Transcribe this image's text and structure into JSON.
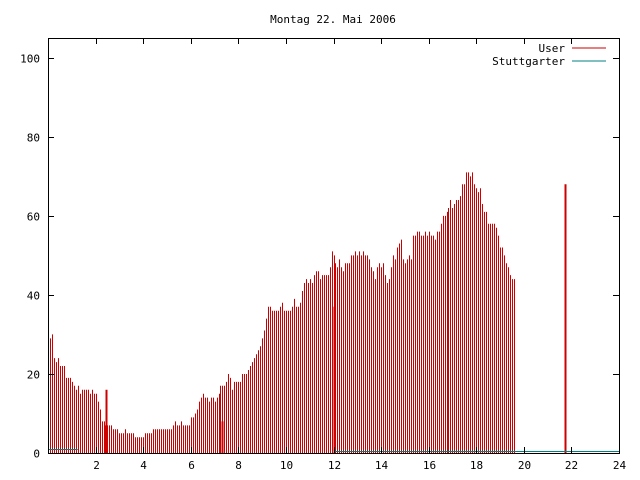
{
  "chart_data": {
    "type": "bar",
    "title": "Montag 22. Mai 2006",
    "xlabel": "",
    "ylabel": "",
    "xlim": [
      0,
      24
    ],
    "ylim": [
      0,
      105
    ],
    "x_ticks": [
      2,
      4,
      6,
      8,
      10,
      12,
      14,
      16,
      18,
      20,
      22,
      24
    ],
    "y_ticks": [
      0,
      20,
      40,
      60,
      80,
      100
    ],
    "grid": false,
    "legend_position": "top-right",
    "colors": {
      "User": "#cc0000",
      "Stuttgarter": "#008080"
    },
    "interval_minutes": 5,
    "series": [
      {
        "name": "User",
        "values": [
          33,
          29,
          30,
          24,
          23,
          24,
          22,
          22,
          22,
          19,
          19,
          19,
          18,
          17,
          16,
          17,
          15,
          16,
          16,
          16,
          16,
          15,
          16,
          15,
          15,
          13,
          11,
          8,
          8,
          7,
          7,
          7,
          7,
          6,
          6,
          6,
          5,
          5,
          5,
          6,
          5,
          5,
          5,
          5,
          4,
          4,
          4,
          4,
          4,
          5,
          5,
          5,
          5,
          6,
          6,
          6,
          6,
          6,
          6,
          6,
          6,
          6,
          6,
          7,
          8,
          7,
          7,
          8,
          7,
          7,
          7,
          7,
          9,
          9,
          10,
          11,
          13,
          14,
          15,
          14,
          14,
          13,
          14,
          14,
          13,
          14,
          15,
          17,
          17,
          17,
          18,
          20,
          19,
          16,
          18,
          18,
          18,
          18,
          20,
          20,
          20,
          21,
          22,
          23,
          24,
          25,
          26,
          27,
          29,
          31,
          34,
          37,
          37,
          36,
          36,
          36,
          36,
          37,
          38,
          36,
          36,
          36,
          36,
          37,
          39,
          37,
          37,
          38,
          41,
          43,
          44,
          43,
          44,
          43,
          45,
          46,
          46,
          44,
          45,
          45,
          45,
          45,
          47,
          51,
          50,
          48,
          47,
          49,
          47,
          46,
          48,
          48,
          48,
          50,
          50,
          51,
          50,
          51,
          50,
          51,
          50,
          50,
          49,
          47,
          46,
          44,
          47,
          48,
          47,
          48,
          45,
          43,
          44,
          47,
          50,
          49,
          52,
          53,
          54,
          49,
          48,
          49,
          50,
          49,
          55,
          55,
          56,
          56,
          55,
          55,
          56,
          55,
          56,
          55,
          55,
          54,
          56,
          56,
          58,
          60,
          60,
          61,
          62,
          64,
          62,
          63,
          64,
          64,
          65,
          68,
          68,
          71,
          71,
          70,
          71,
          68,
          67,
          66,
          67,
          63,
          61,
          61,
          58,
          58,
          58,
          58,
          57,
          55,
          52,
          52,
          50,
          48,
          47,
          45,
          44,
          44
        ],
        "min_max_markers": [
          {
            "x": 2.42,
            "y": 16
          },
          {
            "x": 7.33,
            "y": 8
          },
          {
            "x": 12.0,
            "y": 37
          },
          {
            "x": 21.75,
            "y": 68
          }
        ]
      },
      {
        "name": "Stuttgarter",
        "segments": [
          {
            "x": [
              0,
              1.25
            ],
            "y": 1
          },
          {
            "x": [
              12,
              24
            ],
            "y": 0.5
          }
        ]
      }
    ]
  }
}
